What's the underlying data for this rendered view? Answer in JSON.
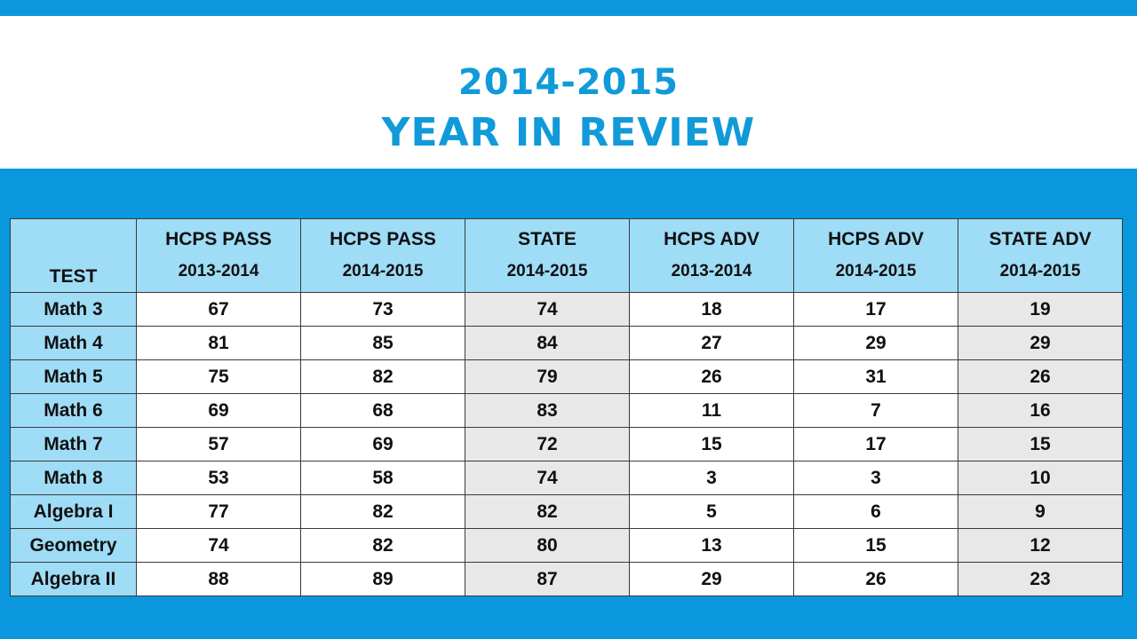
{
  "title": {
    "line1": "2014-2015",
    "line2": "Year in Review"
  },
  "table": {
    "columns": [
      {
        "label": "TEST",
        "sub": ""
      },
      {
        "label": "HCPS PASS",
        "sub": "2013-2014"
      },
      {
        "label": "HCPS PASS",
        "sub": "2014-2015"
      },
      {
        "label": "STATE",
        "sub": "2014-2015"
      },
      {
        "label": "HCPS ADV",
        "sub": "2013-2014"
      },
      {
        "label": "HCPS ADV",
        "sub": "2014-2015"
      },
      {
        "label": "STATE ADV",
        "sub": "2014-2015"
      }
    ],
    "rows": [
      {
        "test": "Math 3",
        "values": [
          "67",
          "73",
          "74",
          "18",
          "17",
          "19"
        ]
      },
      {
        "test": "Math 4",
        "values": [
          "81",
          "85",
          "84",
          "27",
          "29",
          "29"
        ]
      },
      {
        "test": "Math 5",
        "values": [
          "75",
          "82",
          "79",
          "26",
          "31",
          "26"
        ]
      },
      {
        "test": "Math 6",
        "values": [
          "69",
          "68",
          "83",
          "11",
          "7",
          "16"
        ]
      },
      {
        "test": "Math 7",
        "values": [
          "57",
          "69",
          "72",
          "15",
          "17",
          "15"
        ]
      },
      {
        "test": "Math 8",
        "values": [
          "53",
          "58",
          "74",
          "3",
          "3",
          "10"
        ]
      },
      {
        "test": "Algebra I",
        "values": [
          "77",
          "82",
          "82",
          "5",
          "6",
          "9"
        ]
      },
      {
        "test": "Geometry",
        "values": [
          "74",
          "82",
          "80",
          "13",
          "15",
          "12"
        ]
      },
      {
        "test": "Algebra II",
        "values": [
          "88",
          "89",
          "87",
          "29",
          "26",
          "23"
        ]
      }
    ]
  },
  "colors": {
    "background": "#0a97dd",
    "title": "#119ad9",
    "header": "#9fdcf6",
    "state_column": "#e8e8e8"
  }
}
